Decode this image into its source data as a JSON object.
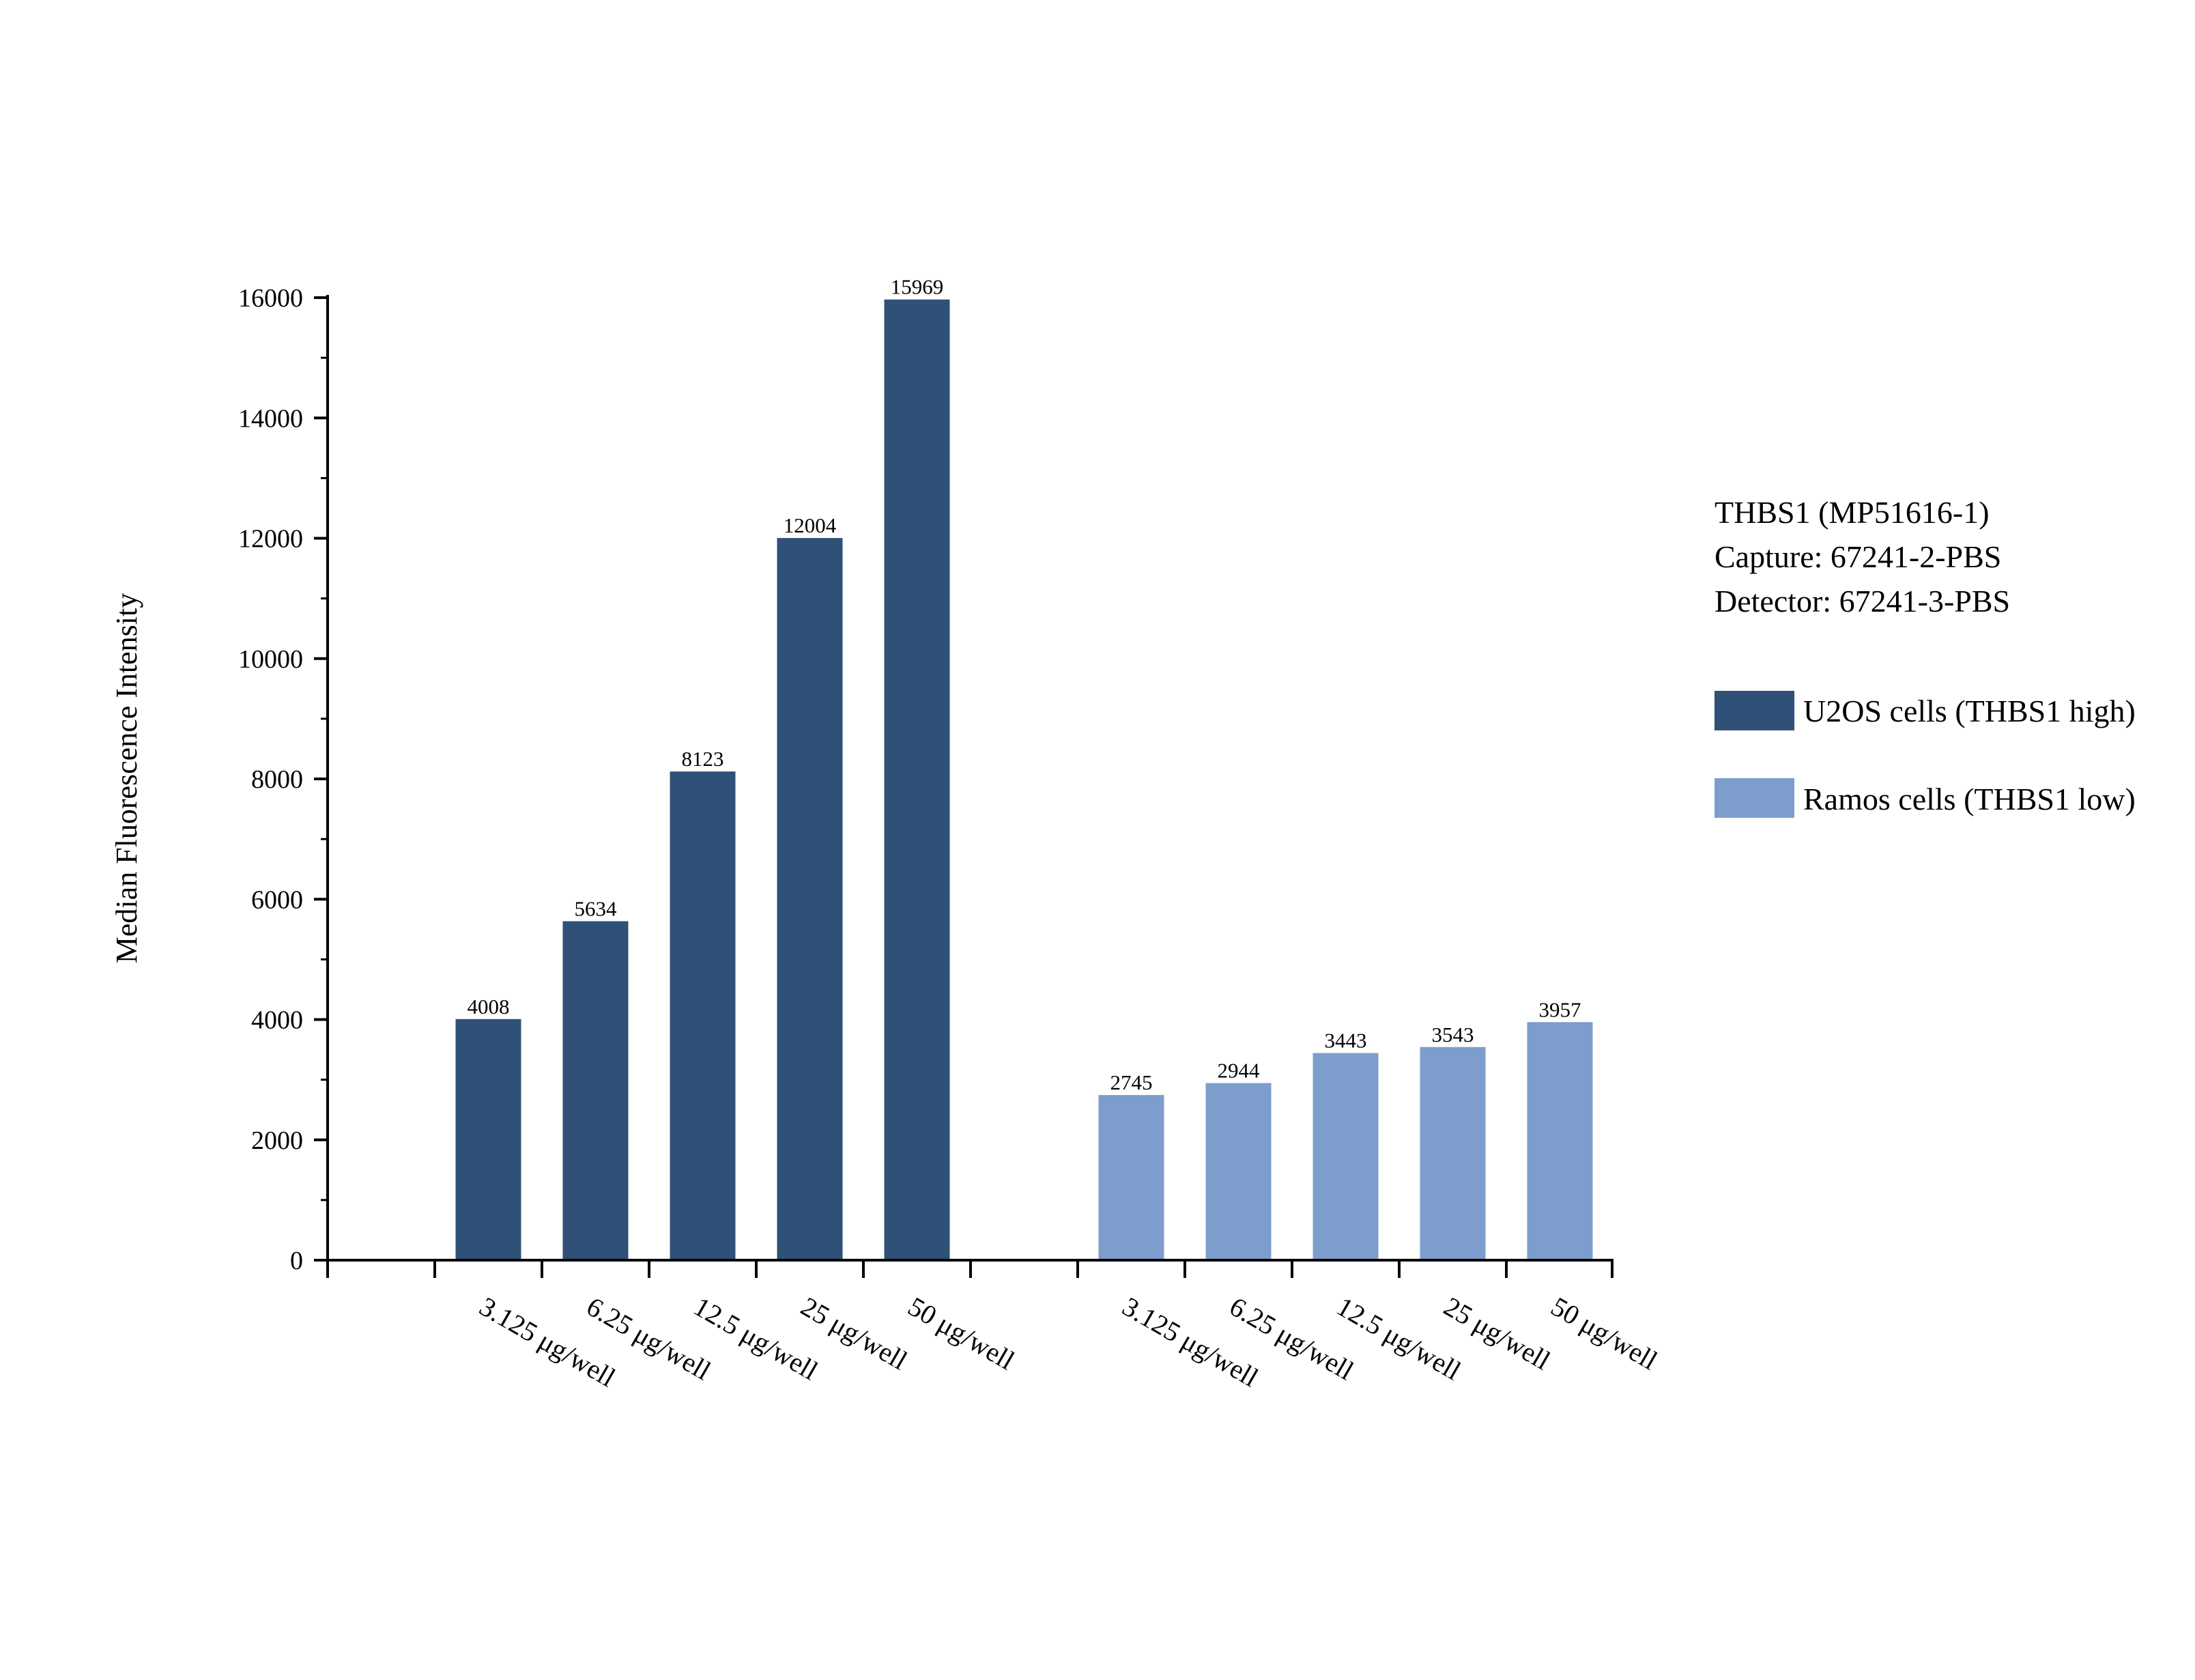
{
  "chart_data": {
    "type": "bar",
    "title": "",
    "xlabel": "",
    "ylabel": "Median Fluorescence Intensity",
    "ylim": [
      0,
      16000
    ],
    "yticks": [
      0,
      2000,
      4000,
      6000,
      8000,
      10000,
      12000,
      14000,
      16000
    ],
    "grid": false,
    "legend_position": "right",
    "series": [
      {
        "name": "U2OS cells (THBS1 high)",
        "color": "#2f5077",
        "categories": [
          "3.125 μg/well",
          "6.25 μg/well",
          "12.5 μg/well",
          "25 μg/well",
          "50 μg/well"
        ],
        "values": [
          4008,
          5634,
          8123,
          12004,
          15969
        ]
      },
      {
        "name": "Ramos cells (THBS1 low)",
        "color": "#7d9ecc",
        "categories": [
          "3.125 μg/well",
          "6.25 μg/well",
          "12.5 μg/well",
          "25 μg/well",
          "50 μg/well"
        ],
        "values": [
          2745,
          2944,
          3443,
          3543,
          3957
        ]
      }
    ],
    "annotation_lines": [
      "THBS1 (MP51616-1)",
      "Capture: 67241-2-PBS",
      "Detector: 67241-3-PBS"
    ]
  }
}
